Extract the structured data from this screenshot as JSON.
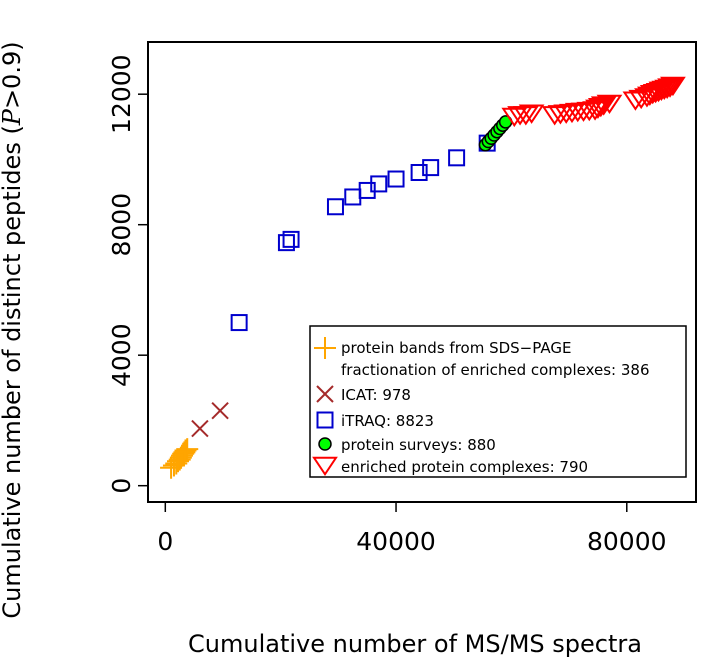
{
  "chart_data": {
    "type": "scatter",
    "title": "",
    "xlabel": "Cumulative number of MS/MS spectra",
    "ylabel": "Cumulative number of distinct peptides (P>0.9)",
    "ylabel_parts": {
      "prefix": "Cumulative number of distinct peptides (",
      "italic": "P",
      "suffix": ">0.9)"
    },
    "xlim": [
      -3000,
      92000
    ],
    "ylim": [
      -500,
      13600
    ],
    "x_ticks": [
      0,
      40000,
      80000
    ],
    "x_tick_labels": [
      "0",
      "40000",
      "80000"
    ],
    "y_ticks": [
      0,
      4000,
      8000,
      12000
    ],
    "y_tick_labels": [
      "0",
      "4000",
      "8000",
      "12000"
    ],
    "grid": false,
    "legend_position": "bottom-right",
    "series": [
      {
        "name": "protein bands from SDS−PAGE fractionation of enriched complexes: 386",
        "legend_lines": [
          "protein bands from SDS−PAGE",
          "fractionation of enriched complexes: 386"
        ],
        "marker": "plus",
        "color": "#FFA500",
        "x": [
          1000,
          1500,
          1900,
          2200,
          2500,
          2700,
          2900,
          3100,
          3300,
          3500,
          3800
        ],
        "y": [
          550,
          620,
          680,
          750,
          800,
          860,
          920,
          980,
          1020,
          1080,
          1120
        ]
      },
      {
        "name": "ICAT: 978",
        "legend_lines": [
          "ICAT: 978"
        ],
        "marker": "x",
        "color": "#A52A2A",
        "x": [
          6000,
          9500
        ],
        "y": [
          1750,
          2300
        ]
      },
      {
        "name": "iTRAQ: 8823",
        "legend_lines": [
          "iTRAQ: 8823"
        ],
        "marker": "square",
        "color": "#0000CD",
        "x": [
          12800,
          21000,
          21800,
          29500,
          32500,
          35000,
          37000,
          40000,
          44000,
          46000,
          50500,
          55800
        ],
        "y": [
          5000,
          7450,
          7550,
          8550,
          8850,
          9050,
          9250,
          9400,
          9600,
          9750,
          10050,
          10500
        ]
      },
      {
        "name": "protein surveys: 880",
        "legend_lines": [
          "protein surveys: 880"
        ],
        "marker": "circle",
        "color": "#00FF00",
        "x": [
          55500,
          56000,
          56500,
          57000,
          57500,
          58000,
          58500,
          59000
        ],
        "y": [
          10450,
          10550,
          10650,
          10750,
          10850,
          10950,
          11050,
          11150
        ]
      },
      {
        "name": "enriched protein complexes: 790",
        "legend_lines": [
          "enriched protein complexes: 790"
        ],
        "marker": "triangle-down",
        "color": "#FF0000",
        "x": [
          60500,
          61500,
          62500,
          63500,
          67500,
          68500,
          69500,
          70500,
          71500,
          72500,
          73500,
          74500,
          75000,
          75500,
          76000,
          77000,
          81500,
          82500,
          83500,
          84000,
          84500,
          85000,
          85500,
          86000,
          86500,
          87000,
          87500,
          88000
        ],
        "y": [
          11300,
          11350,
          11350,
          11400,
          11350,
          11380,
          11400,
          11420,
          11450,
          11460,
          11480,
          11500,
          11550,
          11600,
          11650,
          11700,
          11800,
          11850,
          11900,
          11950,
          12000,
          12030,
          12060,
          12100,
          12130,
          12160,
          12200,
          12250
        ]
      }
    ]
  }
}
